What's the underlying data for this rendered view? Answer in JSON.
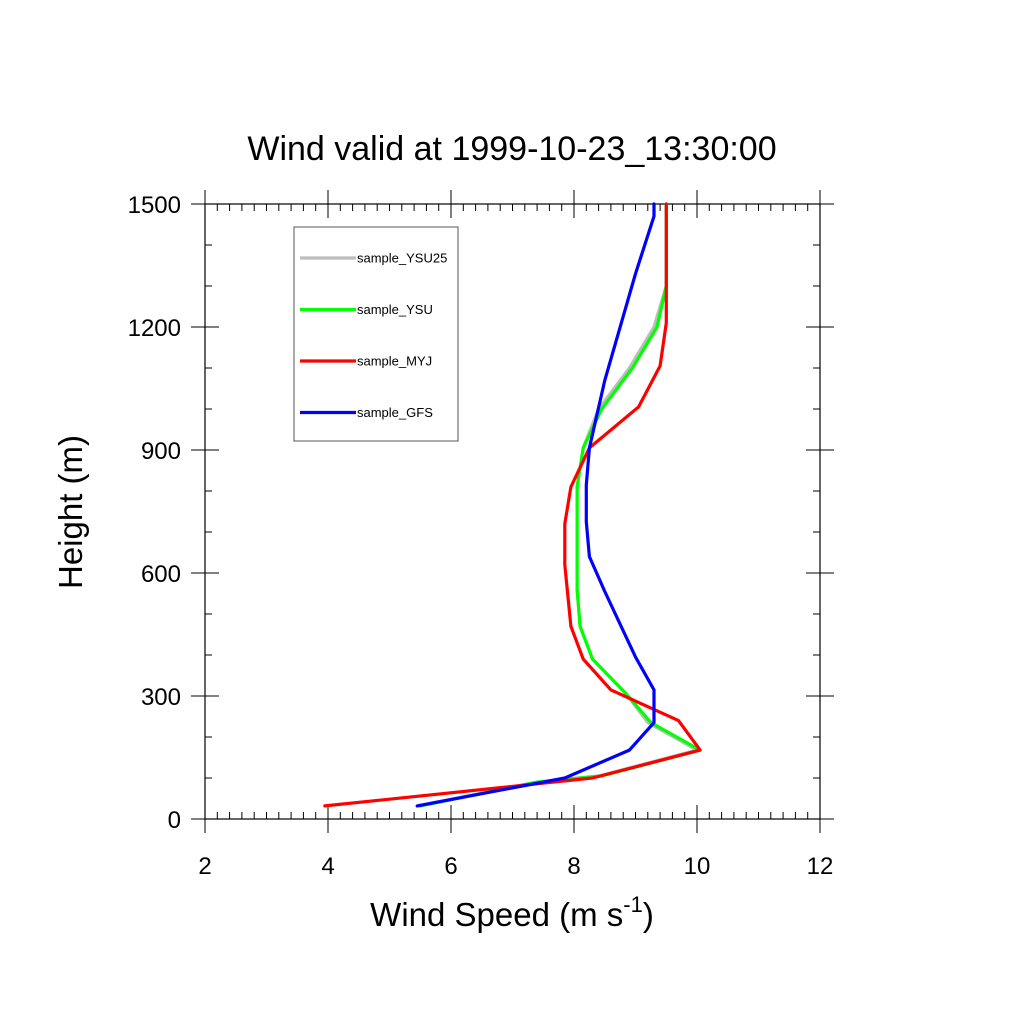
{
  "chart_data": {
    "type": "line",
    "title": "Wind valid at 1999-10-23_13:30:00",
    "xlabel": "Wind Speed (m s",
    "xlabel_superscript": "-1",
    "xlabel_suffix": ")",
    "ylabel": "Height (m)",
    "xlim": [
      2,
      12
    ],
    "ylim": [
      0,
      1500
    ],
    "x_ticks": [
      "2",
      "4",
      "6",
      "8",
      "10",
      "12"
    ],
    "y_ticks": [
      "0",
      "300",
      "600",
      "900",
      "1200",
      "1500"
    ],
    "grid": false,
    "legend_position": "top-left",
    "series": [
      {
        "name": "sample_YSU25",
        "color": "#bdbdbd",
        "points": [
          [
            5.45,
            32
          ],
          [
            7.4,
            90
          ],
          [
            8.4,
            105
          ],
          [
            10.0,
            168
          ],
          [
            9.2,
            235
          ],
          [
            8.85,
            305
          ],
          [
            8.3,
            390
          ],
          [
            8.1,
            470
          ],
          [
            8.05,
            560
          ],
          [
            8.05,
            720
          ],
          [
            8.05,
            810
          ],
          [
            8.15,
            905
          ],
          [
            8.4,
            1000
          ],
          [
            8.9,
            1100
          ],
          [
            9.3,
            1200
          ],
          [
            9.5,
            1300
          ],
          [
            9.5,
            1500
          ]
        ]
      },
      {
        "name": "sample_YSU",
        "color": "#00ff00",
        "points": [
          [
            5.5,
            32
          ],
          [
            7.4,
            90
          ],
          [
            8.45,
            105
          ],
          [
            10.05,
            168
          ],
          [
            9.25,
            235
          ],
          [
            8.85,
            305
          ],
          [
            8.3,
            390
          ],
          [
            8.1,
            470
          ],
          [
            8.05,
            560
          ],
          [
            8.05,
            720
          ],
          [
            8.05,
            810
          ],
          [
            8.15,
            905
          ],
          [
            8.45,
            1000
          ],
          [
            8.95,
            1100
          ],
          [
            9.35,
            1200
          ],
          [
            9.5,
            1300
          ],
          [
            9.5,
            1500
          ]
        ]
      },
      {
        "name": "sample_MYJ",
        "color": "#ff0000",
        "points": [
          [
            3.95,
            32
          ],
          [
            8.3,
            100
          ],
          [
            10.05,
            168
          ],
          [
            9.7,
            240
          ],
          [
            8.6,
            315
          ],
          [
            8.15,
            390
          ],
          [
            7.95,
            470
          ],
          [
            7.85,
            620
          ],
          [
            7.85,
            720
          ],
          [
            7.95,
            810
          ],
          [
            8.25,
            905
          ],
          [
            9.05,
            1005
          ],
          [
            9.4,
            1105
          ],
          [
            9.5,
            1210
          ],
          [
            9.5,
            1300
          ],
          [
            9.5,
            1500
          ]
        ]
      },
      {
        "name": "sample_GFS",
        "color": "#0000ff",
        "points": [
          [
            5.45,
            32
          ],
          [
            7.85,
            100
          ],
          [
            8.9,
            168
          ],
          [
            9.3,
            235
          ],
          [
            9.3,
            315
          ],
          [
            9.0,
            395
          ],
          [
            8.5,
            555
          ],
          [
            8.25,
            640
          ],
          [
            8.2,
            725
          ],
          [
            8.2,
            815
          ],
          [
            8.25,
            905
          ],
          [
            8.5,
            1070
          ],
          [
            9.0,
            1330
          ],
          [
            9.3,
            1470
          ],
          [
            9.3,
            1500
          ]
        ]
      }
    ]
  }
}
